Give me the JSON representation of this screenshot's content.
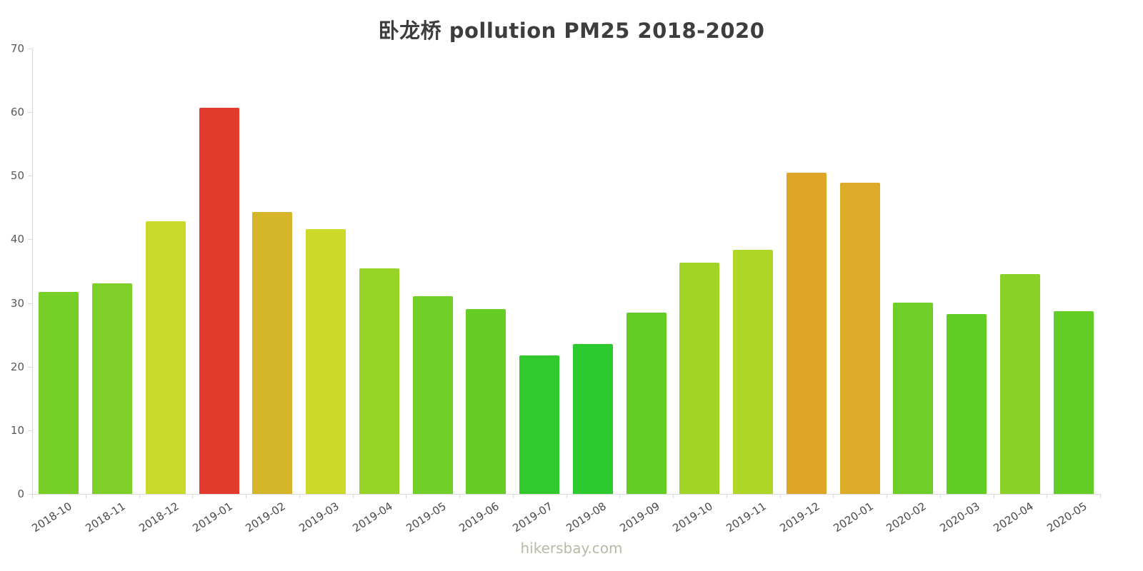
{
  "page": {
    "footer_link": "hikersbay.com"
  },
  "chart_data": {
    "type": "bar",
    "title": "卧龙桥 pollution PM25 2018-2020",
    "xlabel": "",
    "ylabel": "",
    "ylim": [
      0,
      70
    ],
    "yticks": [
      0,
      10,
      20,
      30,
      40,
      50,
      60,
      70
    ],
    "grid": false,
    "legend": false,
    "categories": [
      "2018-10",
      "2018-11",
      "2018-12",
      "2019-01",
      "2019-02",
      "2019-03",
      "2019-04",
      "2019-05",
      "2019-06",
      "2019-07",
      "2019-08",
      "2019-09",
      "2019-10",
      "2019-11",
      "2019-12",
      "2020-01",
      "2020-02",
      "2020-03",
      "2020-04",
      "2020-05"
    ],
    "values": [
      31.7,
      33.1,
      42.9,
      60.7,
      44.3,
      41.6,
      35.5,
      31.1,
      29.1,
      21.8,
      23.6,
      28.5,
      36.3,
      38.4,
      50.5,
      48.9,
      30.1,
      28.3,
      34.6,
      28.7
    ],
    "bar_colors": [
      "#76cf27",
      "#7ed028",
      "#c9d929",
      "#e23b2e",
      "#d5b62a",
      "#ccd929",
      "#98d428",
      "#72cf27",
      "#66cd26",
      "#32c92d",
      "#2cc92f",
      "#62cd26",
      "#a0d528",
      "#aed728",
      "#dfa526",
      "#dcab27",
      "#6fce27",
      "#60cc26",
      "#8bd228",
      "#64cd26"
    ],
    "axis_color": "#d9d9d9",
    "label_color": "#595959"
  }
}
